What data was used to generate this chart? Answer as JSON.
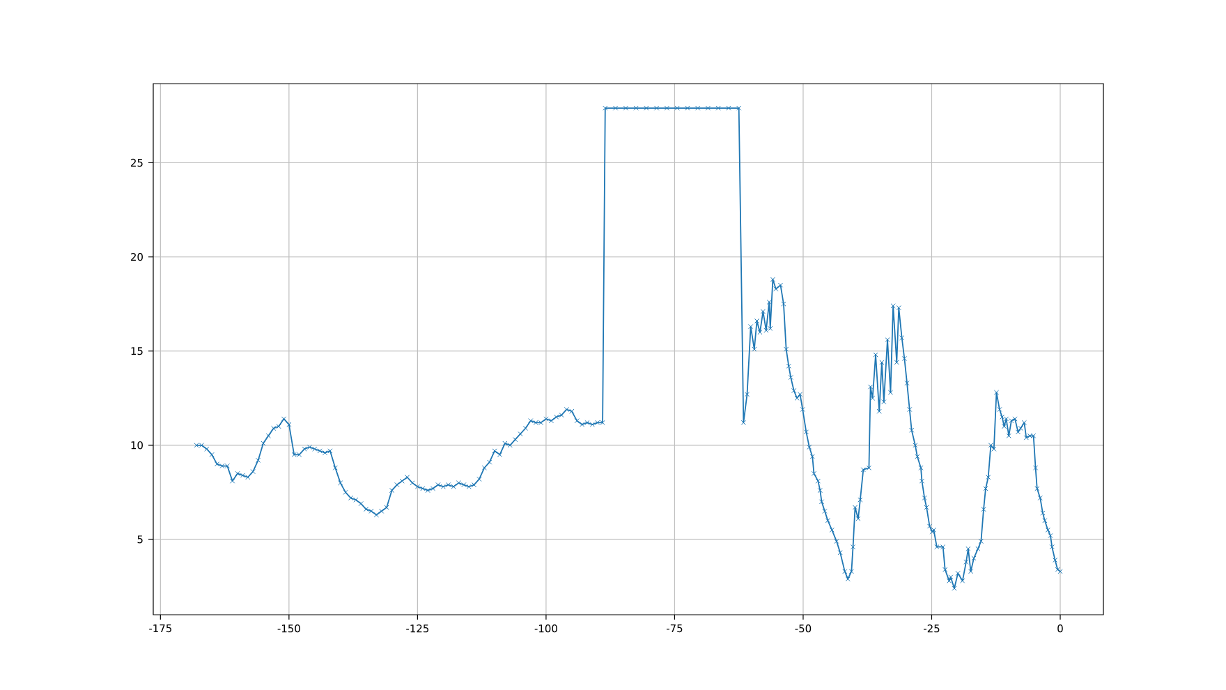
{
  "chart_data": {
    "type": "line",
    "color": "#1f77b4",
    "marker": "cross",
    "line_style": "solid",
    "grid": true,
    "xlim": [
      -176.4,
      8.4
    ],
    "ylim": [
      1.0,
      29.2
    ],
    "xticks": [
      -175,
      -150,
      -125,
      -100,
      -75,
      -50,
      -25,
      0
    ],
    "yticks": [
      5,
      10,
      15,
      20,
      25
    ],
    "x": [
      -168,
      -167,
      -166,
      -165,
      -164,
      -163,
      -162,
      -161,
      -160,
      -159,
      -158,
      -157,
      -156,
      -155,
      -154,
      -153,
      -152,
      -151,
      -150,
      -149,
      -148,
      -147,
      -146,
      -145,
      -144,
      -143,
      -142,
      -141,
      -140,
      -139,
      -138,
      -137,
      -136,
      -135,
      -134,
      -133,
      -132,
      -131,
      -130,
      -129,
      -128,
      -127,
      -126,
      -125,
      -124,
      -123,
      -122,
      -121,
      -120,
      -119,
      -118,
      -117,
      -116,
      -115,
      -114,
      -113,
      -112,
      -111,
      -110,
      -109,
      -108,
      -107,
      -106,
      -105,
      -104,
      -103,
      -102,
      -101,
      -100,
      -99,
      -98,
      -97,
      -96,
      -95,
      -94,
      -93,
      -92,
      -91,
      -90,
      -89,
      -88.5,
      -86.5,
      -84.5,
      -82.5,
      -80.5,
      -78.5,
      -76.5,
      -74.5,
      -72.5,
      -70.5,
      -68.5,
      -66.5,
      -64.5,
      -62.5,
      -61.6,
      -60.9,
      -60.2,
      -59.5,
      -59.0,
      -58.4,
      -57.8,
      -57.2,
      -56.6,
      -56.4,
      -55.9,
      -55.3,
      -54.4,
      -53.8,
      -53.3,
      -52.8,
      -52.4,
      -51.8,
      -51.2,
      -50.6,
      -50.1,
      -49.4,
      -48.8,
      -48.2,
      -47.9,
      -47.1,
      -46.7,
      -46.4,
      -45.8,
      -45.2,
      -44.4,
      -43.5,
      -42.8,
      -41.9,
      -41.3,
      -40.6,
      -40.3,
      -39.9,
      -39.3,
      -38.9,
      -38.3,
      -37.2,
      -36.9,
      -36.5,
      -35.9,
      -35.2,
      -34.7,
      -34.3,
      -33.6,
      -33.0,
      -32.5,
      -31.8,
      -31.4,
      -30.8,
      -30.3,
      -29.8,
      -29.3,
      -28.9,
      -28.2,
      -27.8,
      -27.1,
      -26.9,
      -26.4,
      -26.0,
      -25.4,
      -24.9,
      -24.6,
      -24.0,
      -22.8,
      -22.4,
      -21.6,
      -21.3,
      -20.6,
      -19.9,
      -19.0,
      -18.3,
      -17.9,
      -17.4,
      -16.8,
      -16.0,
      -15.4,
      -14.9,
      -14.5,
      -14.0,
      -13.5,
      -12.9,
      -12.4,
      -11.8,
      -11.3,
      -10.9,
      -10.5,
      -10.0,
      -9.5,
      -8.8,
      -8.2,
      -7.7,
      -7.0,
      -6.6,
      -5.9,
      -5.2,
      -4.8,
      -4.5,
      -3.9,
      -3.4,
      -3.0,
      -2.4,
      -1.9,
      -1.6,
      -1.0,
      -0.5,
      0
    ],
    "values": [
      10.0,
      10.0,
      9.8,
      9.5,
      9.0,
      8.9,
      8.9,
      8.1,
      8.5,
      8.4,
      8.3,
      8.6,
      9.2,
      10.1,
      10.5,
      10.9,
      11.0,
      11.4,
      11.1,
      9.5,
      9.5,
      9.8,
      9.9,
      9.8,
      9.7,
      9.6,
      9.7,
      8.8,
      8.0,
      7.5,
      7.2,
      7.1,
      6.9,
      6.6,
      6.5,
      6.3,
      6.5,
      6.7,
      7.6,
      7.9,
      8.1,
      8.3,
      8.0,
      7.8,
      7.7,
      7.6,
      7.7,
      7.9,
      7.8,
      7.9,
      7.8,
      8.0,
      7.9,
      7.8,
      7.9,
      8.2,
      8.8,
      9.1,
      9.7,
      9.5,
      10.1,
      10.0,
      10.3,
      10.6,
      10.9,
      11.3,
      11.2,
      11.2,
      11.4,
      11.3,
      11.5,
      11.6,
      11.9,
      11.8,
      11.3,
      11.1,
      11.2,
      11.1,
      11.2,
      11.2,
      27.9,
      27.9,
      27.9,
      27.9,
      27.9,
      27.9,
      27.9,
      27.9,
      27.9,
      27.9,
      27.9,
      27.9,
      27.9,
      27.9,
      11.2,
      12.7,
      16.3,
      15.1,
      16.6,
      16.0,
      17.1,
      16.1,
      17.6,
      16.2,
      18.8,
      18.3,
      18.5,
      17.5,
      15.1,
      14.2,
      13.6,
      12.9,
      12.5,
      12.7,
      11.9,
      10.7,
      9.9,
      9.4,
      8.5,
      8.1,
      7.6,
      7.0,
      6.5,
      6.0,
      5.5,
      4.9,
      4.3,
      3.3,
      2.9,
      3.3,
      4.6,
      6.7,
      6.1,
      7.1,
      8.7,
      8.8,
      13.1,
      12.5,
      14.8,
      11.8,
      14.4,
      12.3,
      15.6,
      12.8,
      17.4,
      14.4,
      17.3,
      15.7,
      14.6,
      13.3,
      11.9,
      10.8,
      10.0,
      9.4,
      8.8,
      8.1,
      7.2,
      6.7,
      5.7,
      5.4,
      5.5,
      4.6,
      4.6,
      3.4,
      2.8,
      3.0,
      2.4,
      3.2,
      2.8,
      3.8,
      4.5,
      3.3,
      4.0,
      4.5,
      4.9,
      6.6,
      7.7,
      8.3,
      10.0,
      9.8,
      12.8,
      11.9,
      11.5,
      11.0,
      11.4,
      10.5,
      11.3,
      11.4,
      10.7,
      10.9,
      11.2,
      10.4,
      10.5,
      10.5,
      8.8,
      7.7,
      7.2,
      6.4,
      6.0,
      5.5,
      5.2,
      4.6,
      3.9,
      3.4,
      3.3
    ]
  }
}
